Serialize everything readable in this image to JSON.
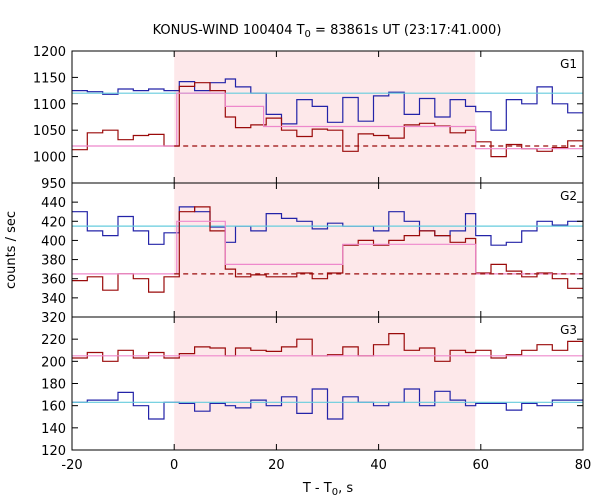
{
  "colors": {
    "background": "#ffffff",
    "shade": "#fde8ea",
    "dark_red": "#9a0a0a",
    "blue": "#2323a8",
    "cyan": "#66ccdd",
    "pink": "#ee88cc"
  },
  "chart_data": {
    "type": "line",
    "title_parts": {
      "prefix": "KONUS-WIND 100404 T",
      "sub": "0",
      "suffix": " = 83861s UT (23:17:41.000)"
    },
    "xlabel_parts": {
      "prefix": "T - T",
      "sub": "0",
      "suffix": ", s"
    },
    "ylabel": "counts / sec",
    "xlim": [
      -20,
      80
    ],
    "xticks": [
      -20,
      0,
      20,
      40,
      60,
      80
    ],
    "x_tick_labels": [
      "-20",
      "0",
      "20",
      "40",
      "60",
      "80"
    ],
    "shaded_interval": [
      0,
      58.9
    ],
    "grid": false,
    "panels": [
      {
        "label": "G1",
        "ylim": [
          950,
          1200
        ],
        "yticks": [
          950,
          1000,
          1050,
          1100,
          1150,
          1200
        ],
        "y_tick_labels": [
          "950",
          "1000",
          "1050",
          "1100",
          "1150",
          "1200"
        ],
        "series": [
          {
            "color": "blue",
            "style": "step",
            "x": [
              -20,
              -17,
              -14,
              -11,
              -8,
              -5,
              -2,
              1,
              4,
              7,
              10,
              12,
              15,
              18,
              21,
              24,
              27,
              30,
              33,
              36,
              39,
              42,
              45,
              48,
              51,
              54,
              57,
              59,
              62,
              65,
              68,
              71,
              74,
              77,
              80
            ],
            "y": [
              1125,
              1123,
              1118,
              1128,
              1125,
              1128,
              1125,
              1142,
              1125,
              1140,
              1147,
              1132,
              1120,
              1080,
              1062,
              1108,
              1095,
              1065,
              1112,
              1067,
              1115,
              1122,
              1080,
              1110,
              1075,
              1108,
              1095,
              1085,
              1050,
              1108,
              1100,
              1132,
              1100,
              1083,
              1095
            ]
          },
          {
            "color": "cyan",
            "style": "line",
            "x": [
              -20,
              80
            ],
            "y": [
              1120,
              1120
            ]
          },
          {
            "color": "dark_red",
            "style": "step",
            "x": [
              -20,
              -17,
              -14,
              -11,
              -8,
              -5,
              -2,
              1,
              4,
              7,
              10,
              12,
              15,
              18,
              21,
              24,
              27,
              30,
              33,
              36,
              39,
              42,
              45,
              48,
              51,
              54,
              57,
              59,
              62,
              65,
              68,
              71,
              74,
              77,
              80
            ],
            "y": [
              1013,
              1045,
              1050,
              1032,
              1040,
              1042,
              1020,
              1133,
              1140,
              1125,
              1075,
              1055,
              1060,
              1073,
              1050,
              1038,
              1052,
              1050,
              1010,
              1043,
              1040,
              1035,
              1060,
              1063,
              1058,
              1045,
              1050,
              1028,
              1000,
              1023,
              1015,
              1010,
              1017,
              1030,
              1032
            ]
          },
          {
            "color": "pink",
            "style": "step",
            "x": [
              -20,
              0,
              0.5,
              10,
              17.5,
              59,
              59,
              80
            ],
            "y": [
              1020,
              1020,
              1120,
              1095,
              1057,
              1057,
              1015,
              1015
            ]
          },
          {
            "color": "dark_red",
            "style": "dashed",
            "x": [
              0,
              80
            ],
            "y": [
              1020,
              1020
            ]
          }
        ]
      },
      {
        "label": "G2",
        "ylim": [
          320,
          460
        ],
        "yticks": [
          320,
          340,
          360,
          380,
          400,
          420,
          440
        ],
        "y_tick_labels": [
          "320",
          "340",
          "360",
          "380",
          "400",
          "420",
          "440"
        ],
        "series": [
          {
            "color": "blue",
            "style": "step",
            "x": [
              -20,
              -17,
              -14,
              -11,
              -8,
              -5,
              -2,
              1,
              4,
              7,
              10,
              12,
              15,
              18,
              21,
              24,
              27,
              30,
              33,
              36,
              39,
              42,
              45,
              48,
              51,
              54,
              57,
              59,
              62,
              65,
              68,
              71,
              74,
              77,
              80
            ],
            "y": [
              430,
              410,
              405,
              425,
              410,
              396,
              408,
              435,
              430,
              414,
              398,
              415,
              410,
              428,
              423,
              420,
              412,
              418,
              415,
              415,
              410,
              430,
              420,
              410,
              405,
              410,
              428,
              405,
              395,
              398,
              410,
              420,
              416,
              420,
              422
            ]
          },
          {
            "color": "cyan",
            "style": "line",
            "x": [
              -20,
              80
            ],
            "y": [
              415,
              415
            ]
          },
          {
            "color": "dark_red",
            "style": "step",
            "x": [
              -20,
              -17,
              -14,
              -11,
              -8,
              -5,
              -2,
              1,
              4,
              7,
              10,
              12,
              15,
              18,
              21,
              24,
              27,
              30,
              33,
              36,
              39,
              42,
              45,
              48,
              51,
              54,
              57,
              59,
              62,
              65,
              68,
              71,
              74,
              77,
              80
            ],
            "y": [
              358,
              362,
              348,
              365,
              360,
              346,
              362,
              430,
              435,
              410,
              370,
              362,
              364,
              362,
              362,
              366,
              360,
              366,
              395,
              400,
              395,
              400,
              405,
              410,
              405,
              398,
              402,
              366,
              375,
              368,
              362,
              366,
              360,
              350,
              352
            ]
          },
          {
            "color": "pink",
            "style": "step",
            "x": [
              -20,
              0,
              0.5,
              10,
              33,
              59,
              59,
              80
            ],
            "y": [
              365,
              365,
              420,
              375,
              396,
              396,
              365,
              365
            ]
          },
          {
            "color": "dark_red",
            "style": "dashed",
            "x": [
              0,
              80
            ],
            "y": [
              365,
              365
            ]
          }
        ]
      },
      {
        "label": "G3",
        "ylim": [
          120,
          240
        ],
        "yticks": [
          120,
          140,
          160,
          180,
          200,
          220
        ],
        "y_tick_labels": [
          "120",
          "140",
          "160",
          "180",
          "200",
          "220"
        ],
        "series": [
          {
            "color": "dark_red",
            "style": "step",
            "x": [
              -20,
              -17,
              -14,
              -11,
              -8,
              -5,
              -2,
              1,
              4,
              7,
              10,
              12,
              15,
              18,
              21,
              24,
              27,
              30,
              33,
              36,
              39,
              42,
              45,
              48,
              51,
              54,
              57,
              59,
              62,
              65,
              68,
              71,
              74,
              77,
              80
            ],
            "y": [
              203,
              208,
              200,
              210,
              203,
              208,
              203,
              207,
              213,
              212,
              205,
              212,
              210,
              209,
              213,
              220,
              205,
              206,
              213,
              205,
              215,
              225,
              210,
              212,
              200,
              210,
              208,
              210,
              203,
              206,
              210,
              215,
              210,
              218,
              207
            ]
          },
          {
            "color": "pink",
            "style": "line",
            "x": [
              -20,
              80
            ],
            "y": [
              205,
              205
            ]
          },
          {
            "color": "blue",
            "style": "step",
            "x": [
              -20,
              -17,
              -14,
              -11,
              -8,
              -5,
              -2,
              1,
              4,
              7,
              10,
              12,
              15,
              18,
              21,
              24,
              27,
              30,
              33,
              36,
              39,
              42,
              45,
              48,
              51,
              54,
              57,
              59,
              62,
              65,
              68,
              71,
              74,
              77,
              80
            ],
            "y": [
              163,
              165,
              165,
              172,
              160,
              148,
              163,
              162,
              155,
              162,
              160,
              158,
              165,
              160,
              168,
              153,
              175,
              148,
              168,
              163,
              160,
              163,
              175,
              160,
              173,
              165,
              160,
              162,
              162,
              156,
              162,
              160,
              165,
              165,
              168
            ]
          },
          {
            "color": "cyan",
            "style": "line",
            "x": [
              -20,
              80
            ],
            "y": [
              163,
              163
            ]
          }
        ]
      }
    ]
  }
}
